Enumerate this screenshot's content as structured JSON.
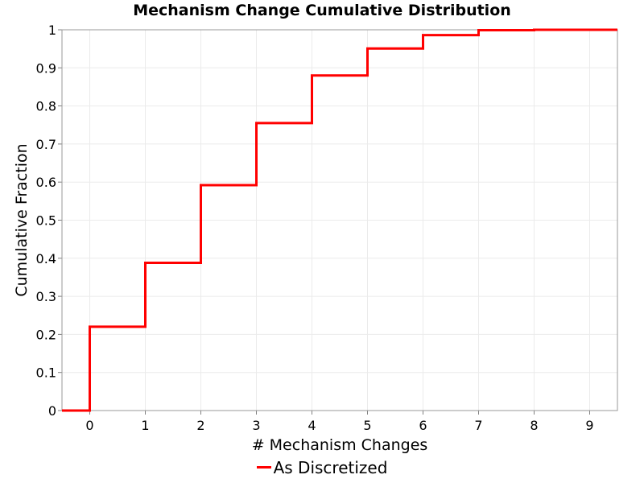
{
  "chart_data": {
    "type": "line",
    "title": "Mechanism Change Cumulative Distribution",
    "xlabel": "# Mechanism Changes",
    "ylabel": "Cumulative Fraction",
    "xlim": [
      -0.5,
      9.5
    ],
    "ylim": [
      0,
      1
    ],
    "xticks": [
      "0",
      "1",
      "2",
      "3",
      "4",
      "5",
      "6",
      "7",
      "8",
      "9"
    ],
    "yticks": [
      "0",
      "0.1",
      "0.2",
      "0.3",
      "0.4",
      "0.5",
      "0.6",
      "0.7",
      "0.8",
      "0.9",
      "1"
    ],
    "grid": true,
    "legend": "bottom",
    "step": true,
    "series": [
      {
        "name": "As Discretized",
        "color": "#ff0000",
        "x": [
          0,
          1,
          2,
          3,
          4,
          5,
          6,
          7,
          8
        ],
        "values": [
          0.22,
          0.388,
          0.592,
          0.755,
          0.88,
          0.951,
          0.986,
          0.999,
          1.0
        ]
      }
    ]
  }
}
